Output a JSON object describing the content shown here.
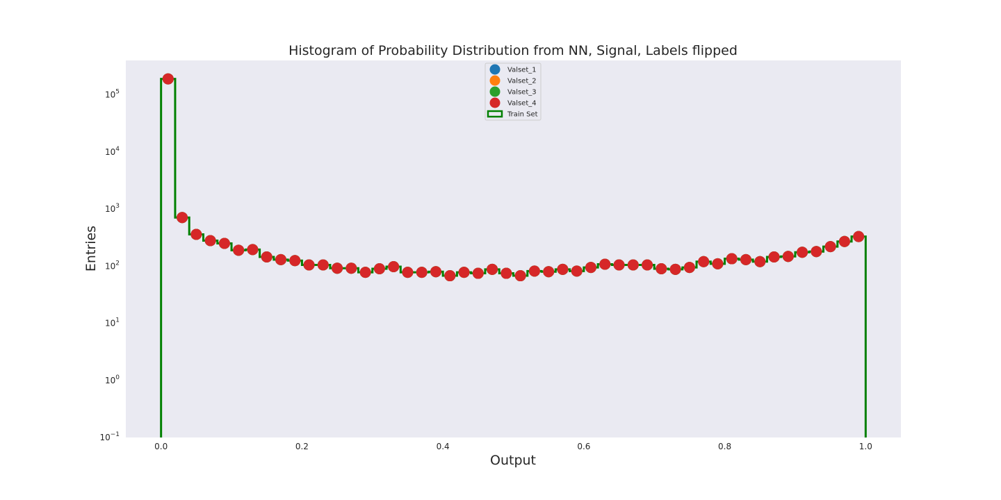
{
  "chart_data": {
    "type": "scatter",
    "title": "Histogram of Probability Distribution from NN, Signal, Labels flipped",
    "xlabel": "Output",
    "ylabel": "Entries",
    "xlim": [
      -0.05,
      1.05
    ],
    "ylim": [
      0.1,
      400000
    ],
    "yscale": "log",
    "grid": false,
    "legend_position": "top-center",
    "x_ticks": [
      "0.0",
      "0.2",
      "0.4",
      "0.6",
      "0.8",
      "1.0"
    ],
    "x_tick_values": [
      0.0,
      0.2,
      0.4,
      0.6,
      0.8,
      1.0
    ],
    "y_ticks": [
      {
        "base": "10",
        "exp": "−1",
        "value": 0.1
      },
      {
        "base": "10",
        "exp": "0",
        "value": 1
      },
      {
        "base": "10",
        "exp": "1",
        "value": 10
      },
      {
        "base": "10",
        "exp": "2",
        "value": 100
      },
      {
        "base": "10",
        "exp": "3",
        "value": 1000
      },
      {
        "base": "10",
        "exp": "4",
        "value": 10000
      },
      {
        "base": "10",
        "exp": "5",
        "value": 100000
      }
    ],
    "bin_edges": [
      0.0,
      0.02,
      0.04,
      0.06,
      0.08,
      0.1,
      0.12,
      0.14,
      0.16,
      0.18,
      0.2,
      0.22,
      0.24,
      0.26,
      0.28,
      0.3,
      0.32,
      0.34,
      0.36,
      0.38,
      0.4,
      0.42,
      0.44,
      0.46,
      0.48,
      0.5,
      0.52,
      0.54,
      0.56,
      0.58,
      0.6,
      0.62,
      0.64,
      0.66,
      0.68,
      0.7,
      0.72,
      0.74,
      0.76,
      0.78,
      0.8,
      0.82,
      0.84,
      0.86,
      0.88,
      0.9,
      0.92,
      0.94,
      0.96,
      0.98,
      1.0
    ],
    "x": [
      0.01,
      0.03,
      0.05,
      0.07,
      0.09,
      0.11,
      0.13,
      0.15,
      0.17,
      0.19,
      0.21,
      0.23,
      0.25,
      0.27,
      0.29,
      0.31,
      0.33,
      0.35,
      0.37,
      0.39,
      0.41,
      0.43,
      0.45,
      0.47,
      0.49,
      0.51,
      0.53,
      0.55,
      0.57,
      0.59,
      0.61,
      0.63,
      0.65,
      0.67,
      0.69,
      0.71,
      0.73,
      0.75,
      0.77,
      0.79,
      0.81,
      0.83,
      0.85,
      0.87,
      0.89,
      0.91,
      0.93,
      0.95,
      0.97,
      0.99
    ],
    "series": [
      {
        "name": "Valset_1",
        "kind": "scatter",
        "color": "#1f77b4",
        "values": [
          190000,
          710,
          360,
          280,
          250,
          190,
          195,
          145,
          130,
          125,
          105,
          105,
          92,
          92,
          78,
          90,
          98,
          78,
          78,
          80,
          68,
          78,
          75,
          88,
          75,
          68,
          82,
          80,
          88,
          82,
          95,
          108,
          105,
          105,
          105,
          90,
          88,
          95,
          120,
          110,
          135,
          130,
          120,
          145,
          148,
          175,
          180,
          220,
          270,
          330
        ]
      },
      {
        "name": "Valset_2",
        "kind": "scatter",
        "color": "#ff7f0e",
        "values": [
          190000,
          710,
          360,
          280,
          250,
          190,
          195,
          145,
          130,
          125,
          105,
          105,
          92,
          92,
          78,
          90,
          98,
          78,
          78,
          80,
          68,
          78,
          75,
          88,
          75,
          68,
          82,
          80,
          88,
          82,
          95,
          108,
          105,
          105,
          105,
          90,
          88,
          95,
          120,
          110,
          135,
          130,
          120,
          145,
          148,
          175,
          180,
          220,
          270,
          330
        ]
      },
      {
        "name": "Valset_3",
        "kind": "scatter",
        "color": "#2ca02c",
        "values": [
          190000,
          710,
          360,
          280,
          250,
          190,
          195,
          145,
          130,
          125,
          105,
          105,
          92,
          92,
          78,
          90,
          98,
          78,
          78,
          80,
          68,
          78,
          75,
          88,
          75,
          68,
          82,
          80,
          88,
          82,
          95,
          108,
          105,
          105,
          105,
          90,
          88,
          95,
          120,
          110,
          135,
          130,
          120,
          145,
          148,
          175,
          180,
          220,
          270,
          330
        ]
      },
      {
        "name": "Valset_4",
        "kind": "scatter",
        "color": "#d62728",
        "values": [
          190000,
          710,
          360,
          280,
          250,
          190,
          195,
          145,
          130,
          125,
          105,
          105,
          92,
          92,
          78,
          90,
          98,
          78,
          78,
          80,
          68,
          78,
          75,
          88,
          75,
          68,
          82,
          80,
          88,
          82,
          95,
          108,
          105,
          105,
          105,
          90,
          88,
          95,
          120,
          110,
          135,
          130,
          120,
          145,
          148,
          175,
          180,
          220,
          270,
          330
        ]
      },
      {
        "name": "Train Set",
        "kind": "step",
        "color": "#008000",
        "values": [
          190000,
          710,
          360,
          280,
          250,
          190,
          195,
          145,
          130,
          125,
          105,
          105,
          92,
          92,
          78,
          90,
          98,
          78,
          78,
          80,
          68,
          78,
          75,
          88,
          75,
          68,
          82,
          80,
          88,
          82,
          95,
          108,
          105,
          105,
          105,
          90,
          88,
          95,
          120,
          110,
          135,
          130,
          120,
          145,
          148,
          175,
          180,
          220,
          270,
          330
        ]
      }
    ]
  }
}
